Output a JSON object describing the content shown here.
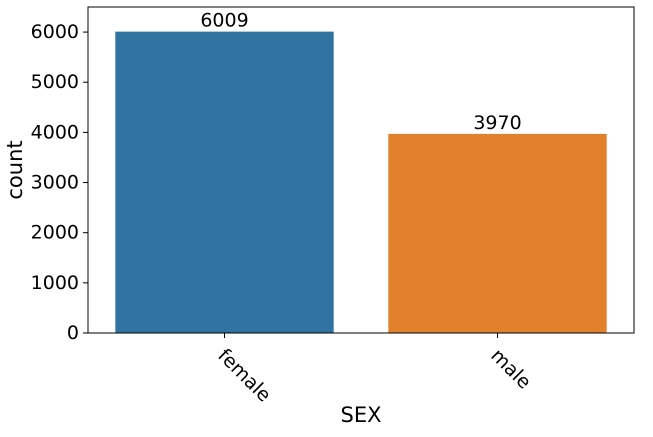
{
  "chart_data": {
    "type": "bar",
    "categories": [
      "female",
      "male"
    ],
    "values": [
      6009,
      3970
    ],
    "data_labels": [
      "6009",
      "3970"
    ],
    "colors": [
      "#3274a1",
      "#e1812c"
    ],
    "title": "",
    "xlabel": "SEX",
    "ylabel": "count",
    "ylim": [
      0,
      6500
    ],
    "yticks": [
      0,
      1000,
      2000,
      3000,
      4000,
      5000,
      6000
    ],
    "ytick_labels": [
      "0",
      "1000",
      "2000",
      "3000",
      "4000",
      "5000",
      "6000"
    ],
    "xtick_rotation_deg": -45,
    "grid": false,
    "legend": "none"
  }
}
